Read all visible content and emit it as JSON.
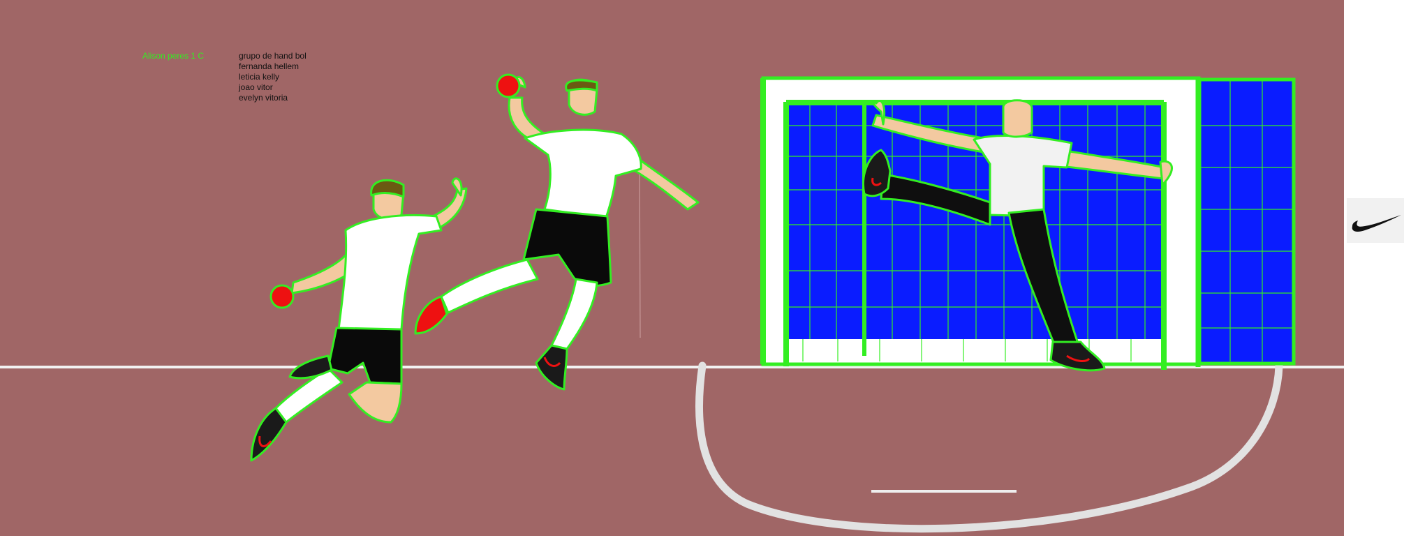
{
  "credits": {
    "author": "Alison peres 1 C",
    "group_title": "grupo de hand bol",
    "members": [
      "fernanda hellem",
      "leticia  kelly",
      "joao vitor",
      "evelyn vitoria"
    ]
  },
  "colors": {
    "court": "#a06666",
    "outline": "#33ee22",
    "net": "#0a1cff",
    "jersey": "#ffffff",
    "shorts": "#0a0a0a",
    "skin": "#f3c9a0",
    "hair": "#6b5a12",
    "ball": "#ee1111",
    "court_line": "#e6e6e6",
    "author_text": "#33ee22"
  },
  "logo": {
    "icon": "swoosh-icon"
  }
}
